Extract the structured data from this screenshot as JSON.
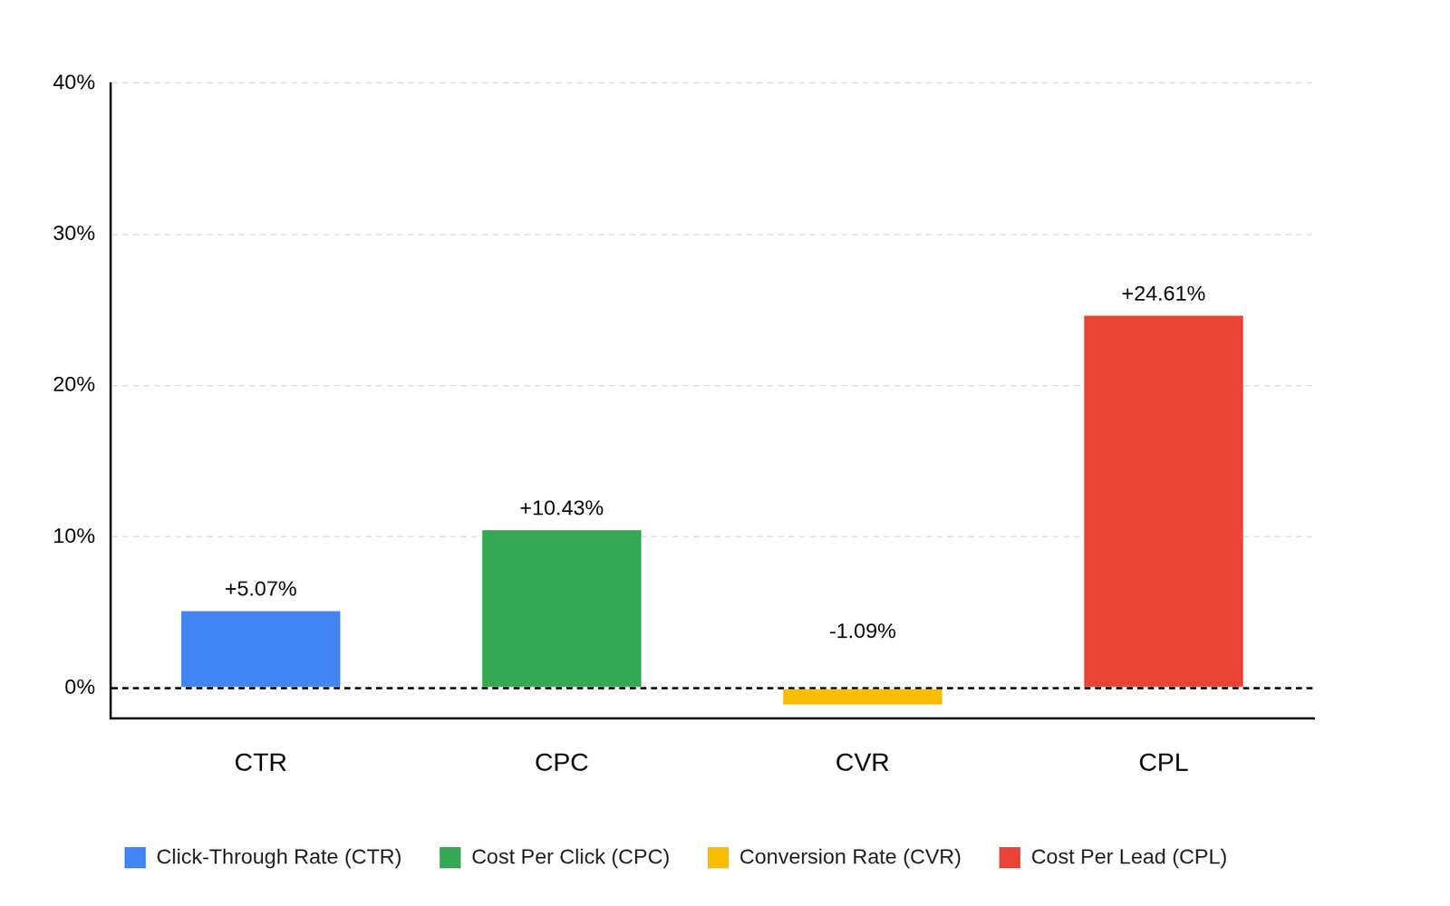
{
  "chart_data": {
    "type": "bar",
    "categories": [
      "CTR",
      "CPC",
      "CVR",
      "CPL"
    ],
    "series": [
      {
        "name": "Click-Through Rate (CTR)",
        "color": "#4285f4",
        "values": [
          5.07,
          null,
          null,
          null
        ],
        "value_labels": [
          "+5.07%",
          null,
          null,
          null
        ]
      },
      {
        "name": "Cost Per Click (CPC)",
        "color": "#34a853",
        "values": [
          null,
          10.43,
          null,
          null
        ],
        "value_labels": [
          null,
          "+10.43%",
          null,
          null
        ]
      },
      {
        "name": "Conversion Rate (CVR)",
        "color": "#fbbc04",
        "values": [
          null,
          null,
          -1.09,
          null
        ],
        "value_labels": [
          null,
          null,
          "-1.09%",
          null
        ]
      },
      {
        "name": "Cost Per Lead (CPL)",
        "color": "#ea4335",
        "values": [
          null,
          null,
          null,
          24.61
        ],
        "value_labels": [
          null,
          null,
          null,
          "+24.61%"
        ]
      }
    ],
    "ylim": [
      -2,
      40
    ],
    "yticks": [
      {
        "value": 0,
        "label": "0%"
      },
      {
        "value": 10,
        "label": "10%"
      },
      {
        "value": 20,
        "label": "20%"
      },
      {
        "value": 30,
        "label": "30%"
      },
      {
        "value": 40,
        "label": "40%"
      }
    ],
    "grid": true,
    "legend": "bottom",
    "data_labels": true
  }
}
